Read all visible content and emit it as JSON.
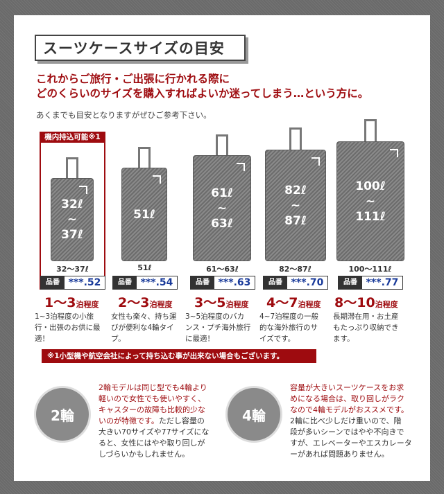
{
  "title": "スーツケースサイズの目安",
  "headline": [
    "これからご旅行・ご出張に行かれる際に",
    "どのくらいのサイズを購入すればよいか迷ってしまう…という方に。"
  ],
  "note": "あくまでも目安となりますがぜひご参考下さい。",
  "carry_on_badge": "機内持込可能※1",
  "sizes": [
    {
      "case_label_top": "32ℓ",
      "case_label_mid": "~",
      "case_label_bottom": "37ℓ",
      "caption": "32～37ℓ",
      "code_key": "品番",
      "code_value": "***.52",
      "nights": "1～3",
      "nights_suffix": "泊程度",
      "desc": [
        "1~3泊程度の小旅",
        "行・出張のお供に最",
        "適！"
      ]
    },
    {
      "case_label_top": "51ℓ",
      "case_label_mid": "",
      "case_label_bottom": "",
      "caption": "51ℓ",
      "code_key": "品番",
      "code_value": "***.54",
      "nights": "2～3",
      "nights_suffix": "泊程度",
      "desc": [
        "女性も楽々、持ち運",
        "びが便利な4輪タイ",
        "プ。"
      ]
    },
    {
      "case_label_top": "61ℓ",
      "case_label_mid": "~",
      "case_label_bottom": "63ℓ",
      "caption": "61～63ℓ",
      "code_key": "品番",
      "code_value": "***.63",
      "nights": "3～5",
      "nights_suffix": "泊程度",
      "desc": [
        "3~5泊程度のバカ",
        "ンス・プチ海外旅行",
        "に最適！"
      ]
    },
    {
      "case_label_top": "82ℓ",
      "case_label_mid": "~",
      "case_label_bottom": "87ℓ",
      "caption": "82～87ℓ",
      "code_key": "品番",
      "code_value": "***.70",
      "nights": "4～7",
      "nights_suffix": "泊程度",
      "desc": [
        "4~7泊程度の一般",
        "的な海外旅行のサ",
        "イズです。"
      ]
    },
    {
      "case_label_top": "100ℓ",
      "case_label_mid": "~",
      "case_label_bottom": "111ℓ",
      "caption": "100～111ℓ",
      "code_key": "品番",
      "code_value": "***.77",
      "nights": "8～10",
      "nights_suffix": "泊程度",
      "desc": [
        "長期滞在用・お土産",
        "もたっぷり収納でき",
        "ます。"
      ]
    }
  ],
  "warning": "※1小型機や航空会社によって持ち込む事が出来ない場合もございます。",
  "two_wheel": {
    "label": "2輪",
    "red_lines": [
      "2輪モデルは同じ型でも4輪より",
      "軽いので女性でも使いやすく、",
      "キャスターの故障も比較的少な",
      "いのが特徴です。"
    ],
    "red_tail_black": "ただし容量の",
    "black_lines": [
      "大きい70サイズや77サイズにな",
      "ると、女性にはやや取り回しが",
      "しづらいかもしれません。"
    ]
  },
  "four_wheel": {
    "label": "4輪",
    "red_lines": [
      "容量が大きいスーツケースをお求",
      "めになる場合は、取り回しがラク",
      "なので4輪モデルがおススメです。"
    ],
    "black_lines": [
      "2輪に比べ少しだけ重いので、階",
      "段が多いシーンではやや不向きで",
      "すが、エレベーターやエスカレータ",
      "ーがあれば問題ありません。"
    ]
  }
}
